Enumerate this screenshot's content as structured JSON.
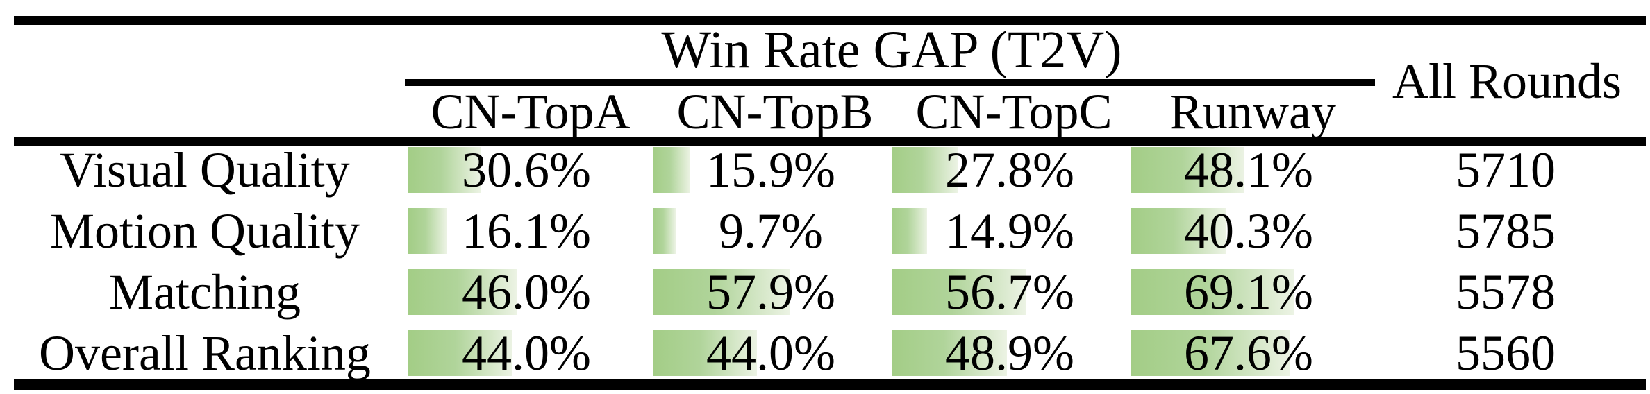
{
  "table": {
    "title": "Win Rate GAP (T2V)",
    "all_rounds_header": "All Rounds",
    "columns": [
      "CN-TopA",
      "CN-TopB",
      "CN-TopC",
      "Runway"
    ],
    "bar_color_start": "#a3cd86",
    "bar_color_end": "#ecf3e4",
    "rows": [
      {
        "label": "Visual Quality",
        "cells": [
          {
            "value": 30.6,
            "display": "30.6%"
          },
          {
            "value": 15.9,
            "display": "15.9%"
          },
          {
            "value": 27.8,
            "display": "27.8%"
          },
          {
            "value": 48.1,
            "display": "48.1%"
          }
        ],
        "all_rounds": "5710"
      },
      {
        "label": "Motion Quality",
        "cells": [
          {
            "value": 16.1,
            "display": "16.1%"
          },
          {
            "value": 9.7,
            "display": "9.7%"
          },
          {
            "value": 14.9,
            "display": "14.9%"
          },
          {
            "value": 40.3,
            "display": "40.3%"
          }
        ],
        "all_rounds": "5785"
      },
      {
        "label": "Matching",
        "cells": [
          {
            "value": 46.0,
            "display": "46.0%"
          },
          {
            "value": 57.9,
            "display": "57.9%"
          },
          {
            "value": 56.7,
            "display": "56.7%"
          },
          {
            "value": 69.1,
            "display": "69.1%"
          }
        ],
        "all_rounds": "5578"
      },
      {
        "label": "Overall Ranking",
        "cells": [
          {
            "value": 44.0,
            "display": "44.0%"
          },
          {
            "value": 44.0,
            "display": "44.0%"
          },
          {
            "value": 48.9,
            "display": "48.9%"
          },
          {
            "value": 67.6,
            "display": "67.6%"
          }
        ],
        "all_rounds": "5560"
      }
    ]
  }
}
